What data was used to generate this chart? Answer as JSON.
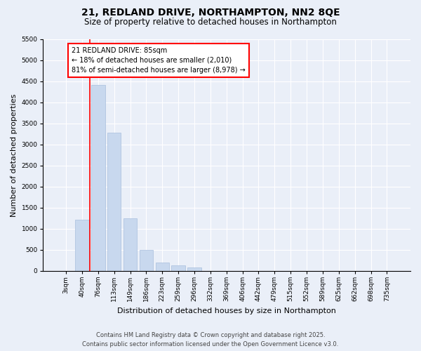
{
  "title_line1": "21, REDLAND DRIVE, NORTHAMPTON, NN2 8QE",
  "title_line2": "Size of property relative to detached houses in Northampton",
  "xlabel": "Distribution of detached houses by size in Northampton",
  "ylabel": "Number of detached properties",
  "bar_color": "#c8d8ee",
  "bar_edgecolor": "#a8bedd",
  "categories": [
    "3sqm",
    "40sqm",
    "76sqm",
    "113sqm",
    "149sqm",
    "186sqm",
    "223sqm",
    "259sqm",
    "296sqm",
    "332sqm",
    "369sqm",
    "406sqm",
    "442sqm",
    "479sqm",
    "515sqm",
    "552sqm",
    "589sqm",
    "625sqm",
    "662sqm",
    "698sqm",
    "735sqm"
  ],
  "values": [
    0,
    1220,
    4420,
    3280,
    1240,
    490,
    200,
    130,
    80,
    0,
    0,
    0,
    0,
    0,
    0,
    0,
    0,
    0,
    0,
    0,
    0
  ],
  "ylim": [
    0,
    5500
  ],
  "yticks": [
    0,
    500,
    1000,
    1500,
    2000,
    2500,
    3000,
    3500,
    4000,
    4500,
    5000,
    5500
  ],
  "annotation_text": "21 REDLAND DRIVE: 85sqm\n← 18% of detached houses are smaller (2,010)\n81% of semi-detached houses are larger (8,978) →",
  "vline_x": 1.5,
  "footer_line1": "Contains HM Land Registry data © Crown copyright and database right 2025.",
  "footer_line2": "Contains public sector information licensed under the Open Government Licence v3.0.",
  "bg_color": "#eaeff8",
  "grid_color": "#ffffff",
  "title_fontsize": 10,
  "subtitle_fontsize": 8.5,
  "tick_fontsize": 6.5,
  "ylabel_fontsize": 8,
  "xlabel_fontsize": 8,
  "annotation_fontsize": 7,
  "footer_fontsize": 6
}
